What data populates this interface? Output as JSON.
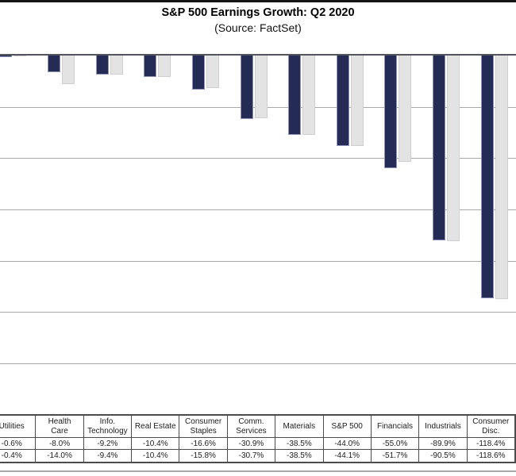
{
  "title": "S&P 500 Earnings Growth: Q2 2020",
  "subtitle": "(Source: FactSet)",
  "colors": {
    "series_navy": "#242b54",
    "series_gray": "#e3e3e3",
    "gridline": "#a9a9a9",
    "axis_line": "#54545c",
    "table_border": "#4c4c4c"
  },
  "chart_data": {
    "type": "bar",
    "orientation": "vertical-negative",
    "categories": [
      "Utilities",
      "Health Care",
      "Info. Technology",
      "Real Estate",
      "Consumer Staples",
      "Comm. Services",
      "Materials",
      "S&P 500",
      "Financials",
      "Industrials",
      "Consumer Disc."
    ],
    "series": [
      {
        "name": "navy",
        "values": [
          -0.6,
          -8.0,
          -9.2,
          -10.4,
          -16.6,
          -30.9,
          -38.5,
          -44.0,
          -55.0,
          -89.9,
          -118.4
        ]
      },
      {
        "name": "gray",
        "values": [
          -0.4,
          -14.0,
          -9.4,
          -10.4,
          -15.8,
          -30.7,
          -38.5,
          -44.1,
          -51.7,
          -90.5,
          -118.6
        ]
      }
    ],
    "title": "S&P 500 Earnings Growth: Q2 2020",
    "subtitle": "(Source: FactSet)",
    "xlabel": "",
    "ylabel": "",
    "ylim": [
      -150,
      0
    ],
    "gridline_step_pct": 25,
    "grid": true,
    "legend_position": "none",
    "y_axis_labels_visible": false
  },
  "table": {
    "header_lines": [
      [
        "Utilities"
      ],
      [
        "Health",
        "Care"
      ],
      [
        "Info.",
        "Technology"
      ],
      [
        "Real Estate"
      ],
      [
        "Consumer",
        "Staples"
      ],
      [
        "Comm.",
        "Services"
      ],
      [
        "Materials"
      ],
      [
        "S&P 500"
      ],
      [
        "Financials"
      ],
      [
        "Industrials"
      ],
      [
        "Consumer",
        "Disc."
      ]
    ],
    "rows": [
      [
        "-0.6%",
        "-8.0%",
        "-9.2%",
        "-10.4%",
        "-16.6%",
        "-30.9%",
        "-38.5%",
        "-44.0%",
        "-55.0%",
        "-89.9%",
        "-118.4%"
      ],
      [
        "-0.4%",
        "-14.0%",
        "-9.4%",
        "-10.4%",
        "-15.8%",
        "-30.7%",
        "-38.5%",
        "-44.1%",
        "-51.7%",
        "-90.5%",
        "-118.6%"
      ]
    ]
  }
}
